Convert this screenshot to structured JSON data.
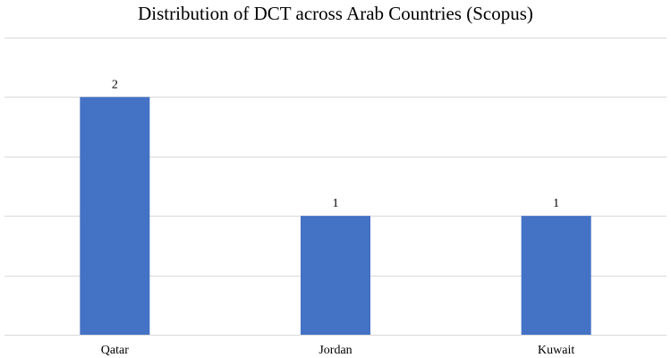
{
  "chart_data": {
    "type": "bar",
    "title": "Distribution of DCT across Arab Countries (Scopus)",
    "categories": [
      "Qatar",
      "Jordan",
      "Kuwait"
    ],
    "values": [
      2,
      1,
      1
    ],
    "data_labels": [
      "2",
      "1",
      "1"
    ],
    "xlabel": "",
    "ylabel": "",
    "ylim": [
      0,
      2.5
    ],
    "y_gridline_step": 0.5,
    "y_tick_labels_shown": false,
    "grid": true,
    "legend": "none",
    "bar_color": "#4472c4",
    "gridline_color": "#d9d9d9"
  }
}
